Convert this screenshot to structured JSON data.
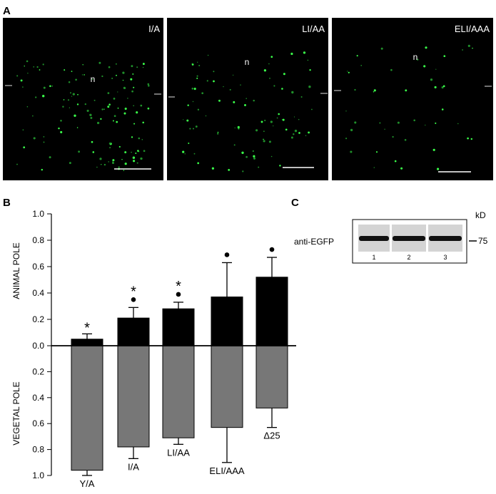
{
  "panel_a": {
    "label": "A",
    "panels": [
      {
        "name": "I/A",
        "nucleus_label": "n"
      },
      {
        "name": "LI/AA",
        "nucleus_label": "n"
      },
      {
        "name": "ELI/AAA",
        "nucleus_label": "n"
      }
    ]
  },
  "panel_b": {
    "label": "B",
    "animal_label": "ANIMAL POLE",
    "vegetal_label": "VEGETAL POLE"
  },
  "panel_c": {
    "label": "C",
    "kd_label": "kD",
    "antibody_label": "anti-EGFP",
    "marker_label": "75",
    "lanes": [
      "1",
      "2",
      "3"
    ]
  },
  "chart_data": {
    "type": "bar",
    "categories": [
      "Y/A",
      "I/A",
      "LI/AA",
      "ELI/AAA",
      "Δ25"
    ],
    "y_ticks_up": [
      "0.0",
      "0.2",
      "0.4",
      "0.6",
      "0.8",
      "1.0"
    ],
    "y_ticks_down": [
      "0.2",
      "0.4",
      "0.6",
      "0.8",
      "1.0"
    ],
    "ylim_up": [
      0,
      1.0
    ],
    "ylim_down": [
      0,
      1.0
    ],
    "series": [
      {
        "values": [
          0.05,
          0.21,
          0.28,
          0.37,
          0.52
        ],
        "errors": [
          0.04,
          0.08,
          0.05,
          0.26,
          0.15
        ],
        "color": "#000000"
      },
      {
        "values": [
          0.96,
          0.78,
          0.71,
          0.63,
          0.48
        ],
        "errors": [
          0.04,
          0.09,
          0.05,
          0.27,
          0.15
        ],
        "color": "#777777"
      }
    ],
    "star_marks": [
      true,
      true,
      true,
      false,
      false
    ],
    "dot_marks": [
      false,
      true,
      true,
      true,
      true
    ]
  }
}
